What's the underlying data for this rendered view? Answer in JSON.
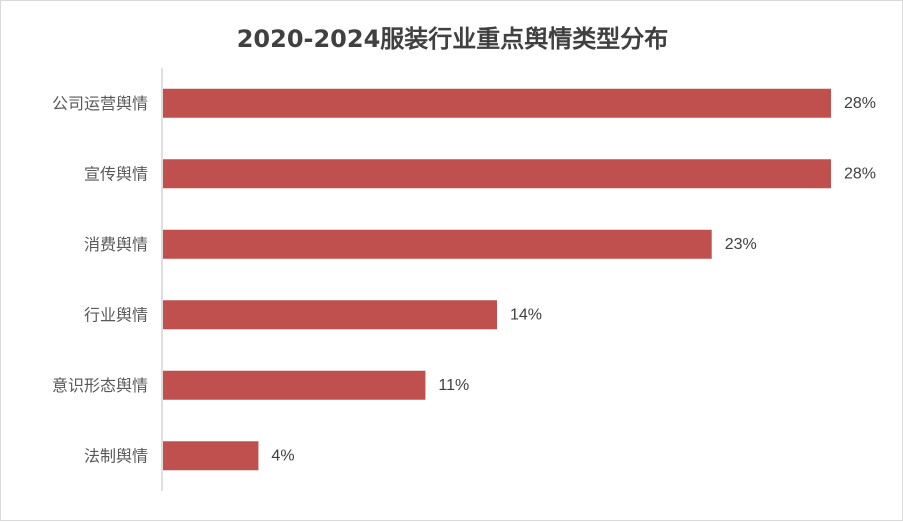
{
  "chart_data": {
    "type": "bar",
    "orientation": "horizontal",
    "title": "2020-2024服装行业重点舆情类型分布",
    "categories": [
      "公司运营舆情",
      "宣传舆情",
      "消费舆情",
      "行业舆情",
      "意识形态舆情",
      "法制舆情"
    ],
    "values": [
      28,
      28,
      23,
      14,
      11,
      4
    ],
    "value_labels": [
      "28%",
      "28%",
      "23%",
      "14%",
      "11%",
      "4%"
    ],
    "unit": "%",
    "xlim": [
      0,
      28
    ],
    "bar_color": "#c0504d",
    "axis_color": "#bfbfbf",
    "label_color": "#595959",
    "grid": false,
    "legend": "none"
  }
}
